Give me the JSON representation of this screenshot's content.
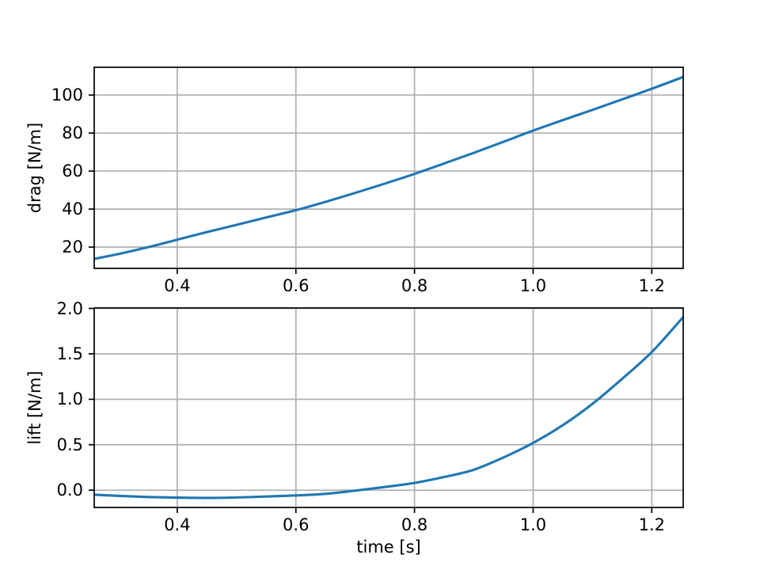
{
  "figure": {
    "background_color": "#ffffff",
    "line_color": "#1f77b4",
    "grid_color": "#b0b0b0",
    "spine_color": "#000000",
    "text_color": "#000000"
  },
  "chart_data": [
    {
      "type": "line",
      "title": "",
      "xlabel": "",
      "ylabel": "drag [N/m]",
      "grid": true,
      "legend": null,
      "xlim": [
        0.26,
        1.253
      ],
      "ylim": [
        8.8,
        114.6
      ],
      "xticks": {
        "values": [
          0.4,
          0.6,
          0.8,
          1.0,
          1.2
        ],
        "labels": [
          "0.4",
          "0.6",
          "0.8",
          "1.0",
          "1.2"
        ]
      },
      "yticks": {
        "values": [
          20,
          40,
          60,
          80,
          100
        ],
        "labels": [
          "20",
          "40",
          "60",
          "80",
          "100"
        ]
      },
      "series": [
        {
          "name": "drag",
          "x": [
            0.26,
            0.3,
            0.35,
            0.4,
            0.45,
            0.5,
            0.55,
            0.6,
            0.65,
            0.7,
            0.75,
            0.8,
            0.85,
            0.9,
            0.95,
            1.0,
            1.05,
            1.1,
            1.15,
            1.2,
            1.253
          ],
          "y": [
            13.8,
            16.3,
            19.9,
            23.9,
            27.9,
            31.7,
            35.6,
            39.4,
            43.8,
            48.5,
            53.4,
            58.5,
            64.0,
            69.6,
            75.4,
            81.3,
            86.8,
            92.2,
            97.7,
            103.3,
            109.5
          ]
        }
      ]
    },
    {
      "type": "line",
      "title": "",
      "xlabel": "time [s]",
      "ylabel": "lift [N/m]",
      "grid": true,
      "legend": null,
      "xlim": [
        0.26,
        1.253
      ],
      "ylim": [
        -0.19,
        2.005
      ],
      "xticks": {
        "values": [
          0.4,
          0.6,
          0.8,
          1.0,
          1.2
        ],
        "labels": [
          "0.4",
          "0.6",
          "0.8",
          "1.0",
          "1.2"
        ]
      },
      "yticks": {
        "values": [
          0.0,
          0.5,
          1.0,
          1.5,
          2.0
        ],
        "labels": [
          "0.0",
          "0.5",
          "1.0",
          "1.5",
          "2.0"
        ]
      },
      "series": [
        {
          "name": "lift",
          "x": [
            0.26,
            0.3,
            0.35,
            0.4,
            0.45,
            0.5,
            0.55,
            0.6,
            0.65,
            0.7,
            0.75,
            0.8,
            0.85,
            0.9,
            0.95,
            1.0,
            1.05,
            1.1,
            1.15,
            1.2,
            1.253
          ],
          "y": [
            -0.05,
            -0.062,
            -0.075,
            -0.082,
            -0.085,
            -0.08,
            -0.07,
            -0.058,
            -0.04,
            -0.005,
            0.035,
            0.08,
            0.145,
            0.225,
            0.36,
            0.52,
            0.715,
            0.95,
            1.225,
            1.52,
            1.905
          ]
        }
      ]
    }
  ]
}
